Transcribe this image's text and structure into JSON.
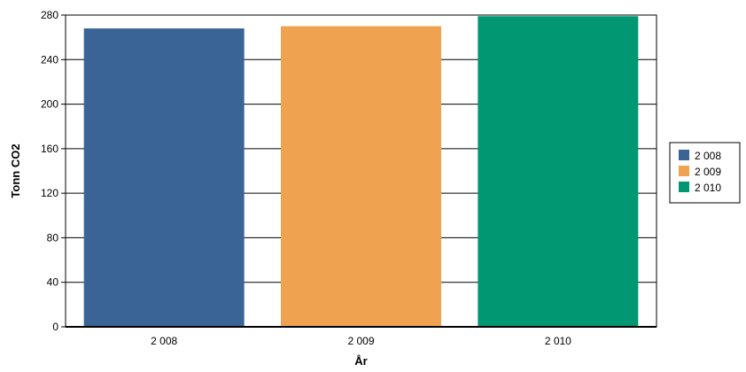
{
  "chart_data": {
    "type": "bar",
    "categories": [
      "2 008",
      "2 009",
      "2 010"
    ],
    "values": [
      268,
      270,
      279
    ],
    "colors": [
      "#3a6496",
      "#efa351",
      "#009772"
    ],
    "title": "",
    "xlabel": "År",
    "ylabel": "Tonn CO2",
    "ylim": [
      0,
      280
    ],
    "yticks": [
      0,
      40,
      80,
      120,
      160,
      200,
      240,
      280
    ],
    "ytick_labels": [
      "0",
      "40",
      "80",
      "120",
      "160",
      "200",
      "240",
      "280"
    ],
    "grid": true,
    "legend_position": "right",
    "legend": [
      "2 008",
      "2 009",
      "2 010"
    ]
  }
}
